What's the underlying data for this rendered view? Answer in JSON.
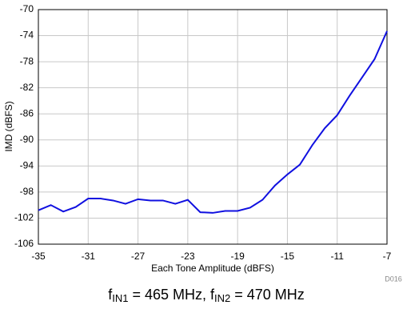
{
  "chart_data": {
    "type": "line",
    "x_label": "Each Tone Amplitude (dBFS)",
    "y_label": "IMD (dBFS)",
    "figure_id": "D016",
    "caption": [
      "f",
      "IN1",
      " = 465 MHz, f",
      "IN2",
      " = 470 MHz"
    ],
    "x": [
      -35,
      -34,
      -33,
      -32,
      -31,
      -30,
      -29,
      -28,
      -27,
      -26,
      -25,
      -24,
      -23,
      -22,
      -21,
      -20,
      -19,
      -18,
      -17,
      -16,
      -15,
      -14,
      -13,
      -12,
      -11,
      -10,
      -9,
      -8,
      -7
    ],
    "series": [
      {
        "name": "IMD",
        "color": "#1010e0",
        "values": [
          -100.8,
          -100.0,
          -101.0,
          -100.3,
          -99.0,
          -99.0,
          -99.3,
          -99.8,
          -99.1,
          -99.3,
          -99.3,
          -99.8,
          -99.2,
          -101.1,
          -101.2,
          -100.9,
          -100.9,
          -100.4,
          -99.2,
          -97.0,
          -95.3,
          -93.8,
          -90.8,
          -88.2,
          -86.2,
          -83.2,
          -80.4,
          -77.6,
          -73.3
        ]
      }
    ],
    "xlim": [
      -35,
      -7
    ],
    "xticks": [
      -35,
      -31,
      -27,
      -23,
      -19,
      -15,
      -11,
      -7
    ],
    "ylim": [
      -106,
      -70
    ],
    "yticks": [
      -106,
      -102,
      -98,
      -94,
      -90,
      -86,
      -82,
      -78,
      -74,
      -70
    ],
    "grid": true
  }
}
